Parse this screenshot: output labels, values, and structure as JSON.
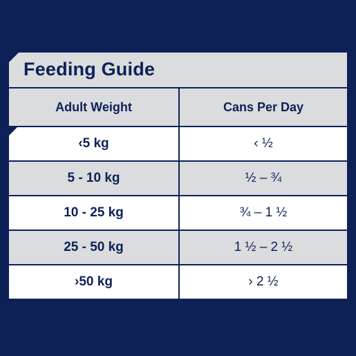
{
  "title": "Feeding Guide",
  "headers": {
    "weight": "Adult Weight",
    "cans": "Cans Per Day"
  },
  "rows": [
    {
      "weight": "‹5 kg",
      "cans": "‹ ½"
    },
    {
      "weight": "5 - 10 kg",
      "cans": "½ – ¾"
    },
    {
      "weight": "10 - 25 kg",
      "cans": "¾ – 1 ½"
    },
    {
      "weight": "25 - 50 kg",
      "cans": "1 ½ – 2 ½"
    },
    {
      "weight": "›50 kg",
      "cans": "› 2 ½"
    }
  ],
  "colors": {
    "navy": "#0d2157",
    "light_grey": "#dadcde",
    "white": "#ffffff"
  }
}
